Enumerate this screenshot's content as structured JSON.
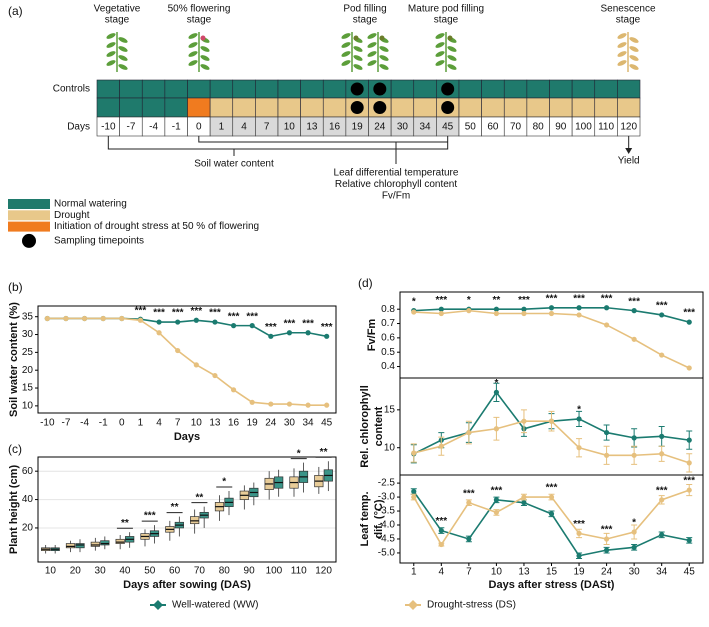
{
  "diagram": {
    "label": "(a)",
    "stages": [
      [
        "Vegetative",
        "stage"
      ],
      [
        "50% flowering",
        "stage"
      ],
      [
        "Pod filling",
        "stage"
      ],
      [
        "Mature pod filling",
        "stage"
      ],
      [
        "Senescence",
        "stage"
      ]
    ],
    "controls_label": "Controls",
    "days_label": "Days",
    "days": [
      "-10",
      "-7",
      "-4",
      "-1",
      "0",
      "1",
      "4",
      "7",
      "10",
      "13",
      "16",
      "19",
      "24",
      "30",
      "34",
      "45",
      "50",
      "60",
      "70",
      "80",
      "90",
      "100",
      "110",
      "120"
    ],
    "swc": "Soil water content",
    "leaf": [
      "Leaf differential temperature",
      "Relative chlorophyll content",
      "Fv/Fm"
    ],
    "yield": "Yield",
    "legend": [
      "Normal watering",
      "Drought",
      "Initiation of drought stress at 50 % of flowering",
      "Sampling timepoints"
    ]
  },
  "chart_data": [
    {
      "type": "line",
      "label": "(b)",
      "ylabel": "Soil water content (%)",
      "xlabel": "Days",
      "categories": [
        "-10",
        "-7",
        "-4",
        "-1",
        "0",
        "1",
        "4",
        "7",
        "10",
        "13",
        "16",
        "19",
        "24",
        "30",
        "34",
        "45"
      ],
      "ylim": [
        8,
        38
      ],
      "yticks": [
        10,
        15,
        20,
        25,
        30,
        35
      ],
      "series": [
        {
          "name": "Well-watered (WW)",
          "color": "#1b7b70",
          "values": [
            34.5,
            34.5,
            34.5,
            34.5,
            34.5,
            34.3,
            33.5,
            33.5,
            34,
            33.5,
            32.5,
            32.5,
            29.5,
            30.5,
            30.5,
            29.5
          ]
        },
        {
          "name": "Drought-stress (DS)",
          "color": "#e6c07e",
          "values": [
            34.5,
            34.5,
            34.5,
            34.5,
            34.5,
            34,
            30.5,
            25.5,
            21.5,
            18.5,
            14.5,
            11,
            10.5,
            10.5,
            10.2,
            10.2
          ]
        }
      ],
      "annotations": [
        null,
        null,
        null,
        null,
        null,
        "***",
        "***",
        "***",
        "***",
        "***",
        "***",
        "***",
        "***",
        "***",
        "***",
        "***"
      ]
    },
    {
      "type": "box",
      "label": "(c)",
      "ylabel": "Plant height (cm)",
      "xlabel": "Days after sowing (DAS)",
      "categories": [
        "10",
        "20",
        "30",
        "40",
        "50",
        "60",
        "70",
        "80",
        "90",
        "100",
        "110",
        "120"
      ],
      "ylim": [
        -4,
        70
      ],
      "yticks": [
        20,
        40,
        60
      ],
      "series": [
        {
          "color": "#e8cc98",
          "lo": [
            2,
            3,
            4,
            5,
            7,
            11,
            16,
            25,
            33,
            40,
            42,
            44
          ],
          "q1": [
            4,
            6,
            7,
            9,
            12,
            17,
            23,
            32,
            40,
            47,
            48,
            49
          ],
          "median": [
            5,
            7,
            8,
            10,
            14,
            19,
            25,
            35,
            43,
            51,
            52,
            53
          ],
          "q3": [
            6,
            9,
            10,
            12,
            16,
            21,
            28,
            38,
            46,
            55,
            56,
            57
          ],
          "hi": [
            8,
            11,
            13,
            15,
            19,
            25,
            33,
            43,
            50,
            60,
            62,
            63
          ]
        },
        {
          "color": "#3a9488",
          "lo": [
            2,
            3,
            5,
            6,
            9,
            14,
            20,
            29,
            36,
            42,
            45,
            46
          ],
          "q1": [
            4,
            6,
            8,
            10,
            14,
            20,
            27,
            35,
            42,
            48,
            52,
            53
          ],
          "median": [
            5,
            8,
            9,
            12,
            16,
            22,
            29,
            38,
            45,
            52,
            56,
            57
          ],
          "q3": [
            6,
            9,
            11,
            14,
            18,
            24,
            31,
            41,
            48,
            56,
            60,
            61
          ],
          "hi": [
            8,
            12,
            14,
            17,
            22,
            28,
            35,
            46,
            52,
            61,
            66,
            67
          ]
        }
      ],
      "annotations": [
        null,
        null,
        null,
        "**",
        "***",
        "**",
        "**",
        "*",
        null,
        null,
        "*",
        "**"
      ]
    },
    {
      "type": "line-panels",
      "label": "(d)",
      "xlabel": "Days after stress (DASt)",
      "categories": [
        "1",
        "4",
        "7",
        "10",
        "13",
        "15",
        "19",
        "24",
        "30",
        "34",
        "45"
      ],
      "panels": [
        {
          "ylabel": [
            "Fv/Fm"
          ],
          "ylim": [
            0.32,
            0.92
          ],
          "yticks": [
            0.4,
            0.5,
            0.6,
            0.7,
            0.8
          ],
          "series": [
            {
              "color": "#1b7b70",
              "values": [
                0.79,
                0.8,
                0.8,
                0.8,
                0.8,
                0.81,
                0.81,
                0.81,
                0.79,
                0.76,
                0.71
              ]
            },
            {
              "color": "#e6c07e",
              "values": [
                0.78,
                0.77,
                0.79,
                0.77,
                0.77,
                0.77,
                0.76,
                0.69,
                0.59,
                0.48,
                0.39
              ]
            }
          ],
          "annotations": [
            "*",
            "***",
            "*",
            "**",
            "***",
            "***",
            "***",
            "***",
            "***",
            "***",
            "***"
          ]
        },
        {
          "ylabel": [
            "Rel. chlorophyll",
            "content"
          ],
          "ylim": [
            6.4,
            19.2
          ],
          "yticks": [
            10,
            15
          ],
          "series": [
            {
              "color": "#1b7b70",
              "values": [
                9.2,
                11,
                12,
                17.3,
                12.5,
                13.5,
                13.8,
                12,
                11.3,
                11.5,
                11
              ],
              "errors": [
                1.2,
                1,
                1.3,
                1.2,
                1,
                1,
                1,
                1,
                1.2,
                1.3,
                1.2
              ]
            },
            {
              "color": "#e6c07e",
              "values": [
                9.3,
                10.2,
                12,
                12.5,
                13.5,
                13.5,
                10,
                9,
                9,
                9.2,
                8
              ],
              "errors": [
                1.2,
                1.2,
                1.5,
                1.5,
                1.5,
                1.3,
                1.2,
                1.2,
                1.2,
                1,
                1.2
              ]
            }
          ],
          "annotations": [
            null,
            null,
            null,
            "*",
            null,
            null,
            "*",
            null,
            null,
            null,
            null
          ]
        },
        {
          "ylabel": [
            "Leaf temp.",
            "dif. (°C)"
          ],
          "ylim": [
            -5.36,
            -2.21
          ],
          "yticks": [
            -2.5,
            {
              "value": -3,
              "label": "-3.0"
            },
            -3.5,
            {
              "value": -4,
              "label": "-4.0"
            },
            -4.5,
            {
              "value": -5,
              "label": "-5.0"
            }
          ],
          "series": [
            {
              "color": "#1b7b70",
              "values": [
                -2.8,
                -4.2,
                -4.5,
                -3.1,
                -3.2,
                -3.6,
                -5.1,
                -4.9,
                -4.8,
                -4.35,
                -4.55
              ],
              "errors": [
                0.1,
                0.1,
                0.1,
                0.1,
                0.1,
                0.1,
                0.1,
                0.1,
                0.1,
                0.1,
                0.1
              ]
            },
            {
              "color": "#e6c07e",
              "values": [
                -3.0,
                -4.7,
                -3.2,
                -3.55,
                -3.0,
                -3.0,
                -4.3,
                -4.5,
                -4.25,
                -3.1,
                -2.75
              ],
              "errors": [
                0.1,
                0.05,
                0.1,
                0.1,
                0.1,
                0.1,
                0.15,
                0.2,
                0.25,
                0.15,
                0.2
              ]
            }
          ],
          "annotations": [
            null,
            "***",
            "***",
            "***",
            null,
            "***",
            "***",
            "***",
            "*",
            "***",
            "***"
          ]
        }
      ]
    }
  ]
}
